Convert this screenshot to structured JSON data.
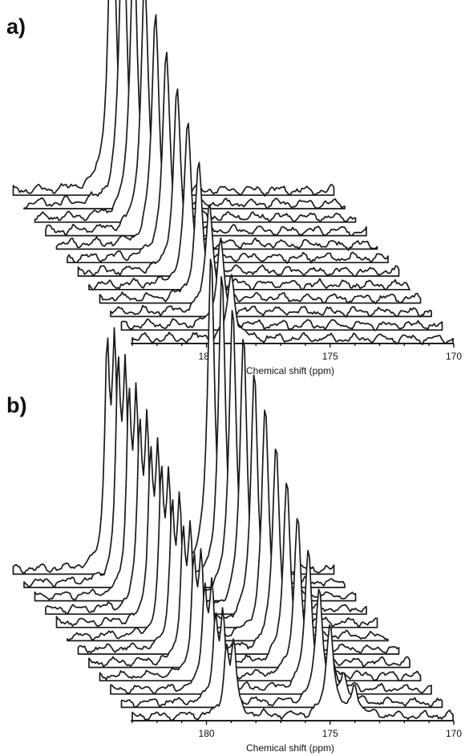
{
  "chart_data": [
    {
      "type": "line",
      "subtype": "stacked-3d-spectra",
      "panel_label": "a)",
      "xlabel": "Chemical shift (ppm)",
      "ylabel": "",
      "x_axis_reversed": true,
      "xlim": [
        183,
        170
      ],
      "x_ticks": [
        180,
        175,
        170
      ],
      "x_tick_labels": [
        "180",
        "175",
        "170"
      ],
      "n_traces": 12,
      "grid": false,
      "legend": "none",
      "series": [
        {
          "name": "",
          "peaks": [
            {
              "ppm": 179.0,
              "width": 0.18,
              "relative_height": [
                0.2,
                0.27,
                0.35,
                0.42,
                0.5,
                0.57,
                0.64,
                0.72,
                0.8,
                0.87,
                0.94,
                1.0
              ]
            }
          ]
        }
      ]
    },
    {
      "type": "line",
      "subtype": "stacked-3d-spectra",
      "panel_label": "b)",
      "xlabel": "Chemical shift (ppm)",
      "ylabel": "",
      "x_axis_reversed": true,
      "xlim": [
        183,
        170
      ],
      "x_ticks": [
        180,
        175,
        170
      ],
      "x_tick_labels": [
        "180",
        "175",
        "170"
      ],
      "n_traces": 12,
      "grid": false,
      "legend": "none",
      "series": [
        {
          "name": "",
          "peaks": [
            {
              "ppm": 179.2,
              "width": 0.12,
              "relative_height": [
                0.2,
                0.25,
                0.3,
                0.34,
                0.38,
                0.42,
                0.46,
                0.5,
                0.54,
                0.58,
                0.62,
                0.66
              ]
            },
            {
              "ppm": 178.9,
              "width": 0.12,
              "relative_height": [
                0.22,
                0.27,
                0.31,
                0.35,
                0.39,
                0.43,
                0.47,
                0.51,
                0.55,
                0.59,
                0.63,
                0.66
              ]
            },
            {
              "ppm": 175.0,
              "width": 0.17,
              "relative_height": [
                0.3,
                0.37,
                0.44,
                0.51,
                0.58,
                0.65,
                0.72,
                0.79,
                0.86,
                0.92,
                0.97,
                1.0
              ]
            },
            {
              "ppm": 174.0,
              "width": 0.15,
              "relative_height": [
                0.1,
                0.09,
                0.08,
                0.07,
                0.06,
                0.05,
                0.04,
                0.03,
                0.02,
                0.02,
                0.01,
                0.0
              ]
            }
          ]
        }
      ]
    }
  ]
}
